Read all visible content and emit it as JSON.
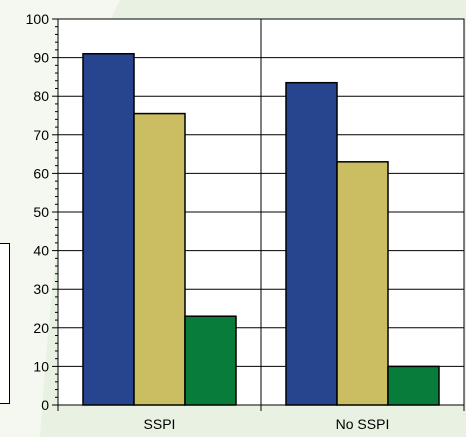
{
  "chart_data": {
    "type": "bar",
    "categories": [
      "SSPI",
      "No SSPI"
    ],
    "series": [
      {
        "values": [
          91,
          83.5
        ],
        "color": "#27458f"
      },
      {
        "values": [
          75.5,
          63
        ],
        "color": "#cbbd62"
      },
      {
        "values": [
          23,
          10
        ],
        "color": "#087d3b"
      }
    ],
    "ylim": [
      0,
      100
    ],
    "yticks": [
      0,
      10,
      20,
      30,
      40,
      50,
      60,
      70,
      80,
      90,
      100
    ],
    "grid": true,
    "plot_background": "#ffffff",
    "page_background": "#e9f2e2"
  }
}
